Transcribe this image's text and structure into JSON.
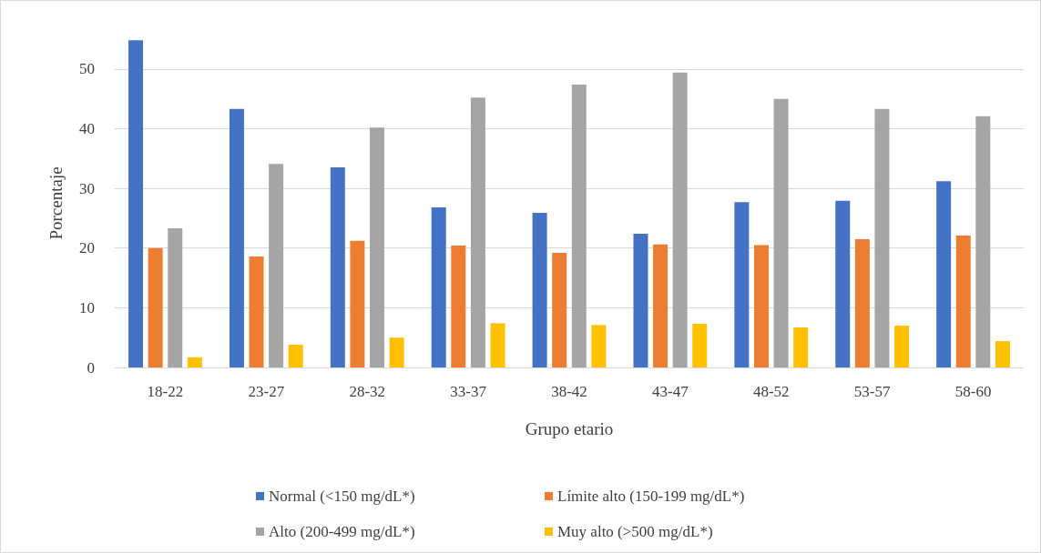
{
  "chart_data": {
    "type": "bar",
    "xlabel": "Grupo etario",
    "ylabel": "Porcentaje",
    "categories": [
      "18-22",
      "23-27",
      "28-32",
      "33-37",
      "38-42",
      "43-47",
      "48-52",
      "53-57",
      "58-60"
    ],
    "series": [
      {
        "name": "Normal (<150 mg/dL*)",
        "color": "#4472c4",
        "values": [
          54.8,
          43.3,
          33.5,
          26.8,
          25.9,
          22.4,
          27.7,
          27.9,
          31.2
        ]
      },
      {
        "name": "Límite alto (150-199 mg/dL*)",
        "color": "#ed7d31",
        "values": [
          20.0,
          18.6,
          21.2,
          20.4,
          19.2,
          20.6,
          20.5,
          21.5,
          22.1
        ]
      },
      {
        "name": "Alto (200-499 mg/dL*)",
        "color": "#a5a5a5",
        "values": [
          23.3,
          34.1,
          40.2,
          45.2,
          47.4,
          49.4,
          45.0,
          43.3,
          42.1
        ]
      },
      {
        "name": "Muy alto (>500 mg/dL*)",
        "color": "#ffc000",
        "values": [
          1.7,
          3.8,
          5.0,
          7.4,
          7.1,
          7.3,
          6.7,
          7.0,
          4.4
        ]
      }
    ],
    "ylim": [
      0,
      55
    ],
    "yticks": [
      0,
      10,
      20,
      30,
      40,
      50
    ],
    "grid": "y",
    "legend": "bottom"
  }
}
